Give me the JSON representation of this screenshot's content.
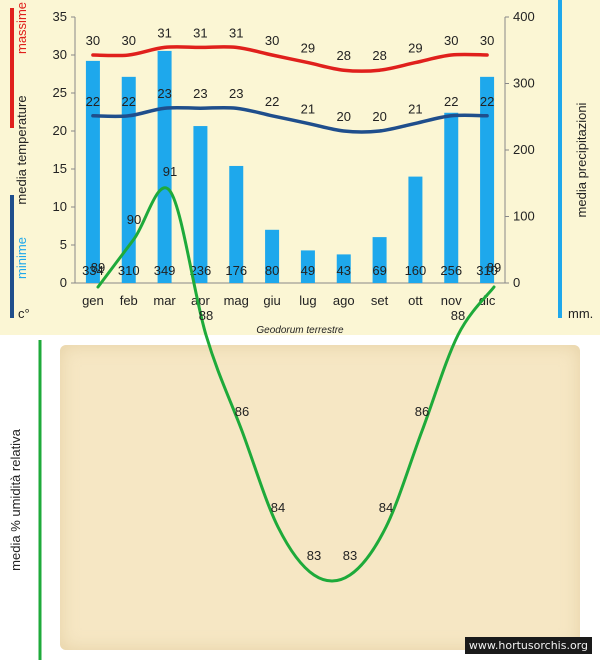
{
  "caption": "Geodorum terrestre",
  "watermark": "www.hortusorchis.org",
  "chart_data": [
    {
      "type": "bar",
      "categories": [
        "gen",
        "feb",
        "mar",
        "apr",
        "mag",
        "giu",
        "lug",
        "ago",
        "set",
        "ott",
        "nov",
        "dic"
      ],
      "left_axis": {
        "ylim": [
          0,
          35
        ],
        "ticks": [
          0,
          5,
          10,
          15,
          20,
          25,
          30,
          35
        ],
        "label_upper": "massime",
        "label_middle": "media  temperature",
        "label_lower": "minime",
        "unit": "c°"
      },
      "right_axis": {
        "ylim": [
          0,
          400
        ],
        "ticks": [
          0,
          100,
          200,
          300,
          400
        ],
        "label": "media  precipitazioni",
        "unit": "mm."
      },
      "series": [
        {
          "name": "precipitazioni",
          "type": "bar",
          "axis": "right",
          "color": "#1ea8ec",
          "values": [
            334,
            310,
            349,
            236,
            176,
            80,
            49,
            43,
            69,
            160,
            256,
            310
          ]
        },
        {
          "name": "massime",
          "type": "line",
          "axis": "left",
          "color": "#e0201c",
          "values": [
            30,
            30,
            31,
            31,
            31,
            30,
            29,
            28,
            28,
            29,
            30,
            30
          ]
        },
        {
          "name": "minime",
          "type": "line",
          "axis": "left",
          "color": "#1f4e8c",
          "values": [
            22,
            22,
            23,
            23,
            23,
            22,
            21,
            20,
            20,
            21,
            22,
            22
          ]
        }
      ]
    },
    {
      "type": "line",
      "categories": [
        "gen",
        "feb",
        "mar",
        "apr",
        "mag",
        "giu",
        "lug",
        "ago",
        "set",
        "ott",
        "nov",
        "dic"
      ],
      "ylabel": "media %  umidità relativa",
      "series": [
        {
          "name": "umidità relativa",
          "color": "#1eaa3a",
          "values": [
            89,
            90,
            91,
            88,
            86,
            84,
            83,
            83,
            84,
            86,
            88,
            89
          ]
        }
      ]
    }
  ]
}
